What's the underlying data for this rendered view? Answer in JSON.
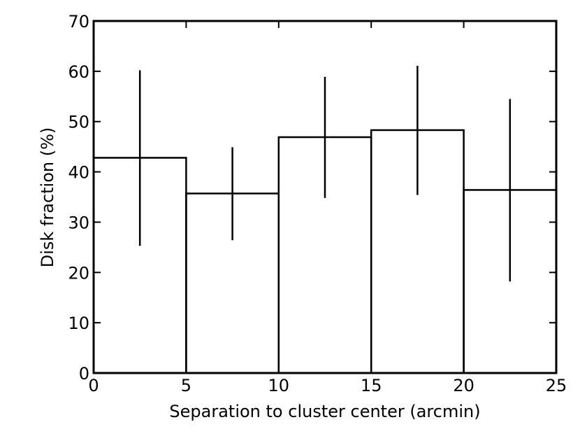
{
  "chart_data": {
    "type": "histogram",
    "xlabel": "Separation to cluster center (arcmin)",
    "ylabel": "Disk fraction (%)",
    "bins": [
      0,
      5,
      10,
      15,
      20,
      25
    ],
    "values": [
      42.8,
      35.7,
      46.9,
      48.3,
      36.4
    ],
    "yerr_minus": [
      17.5,
      9.3,
      12.1,
      12.9,
      18.2
    ],
    "yerr_plus": [
      17.4,
      9.2,
      12.0,
      12.8,
      18.1
    ],
    "color": "#000000",
    "xlim": [
      0,
      25
    ],
    "xticks": [
      0,
      5,
      10,
      15,
      20,
      25
    ],
    "ylim": [
      0,
      70
    ],
    "yticks": [
      0,
      10,
      20,
      30,
      40,
      50,
      60,
      70
    ]
  }
}
